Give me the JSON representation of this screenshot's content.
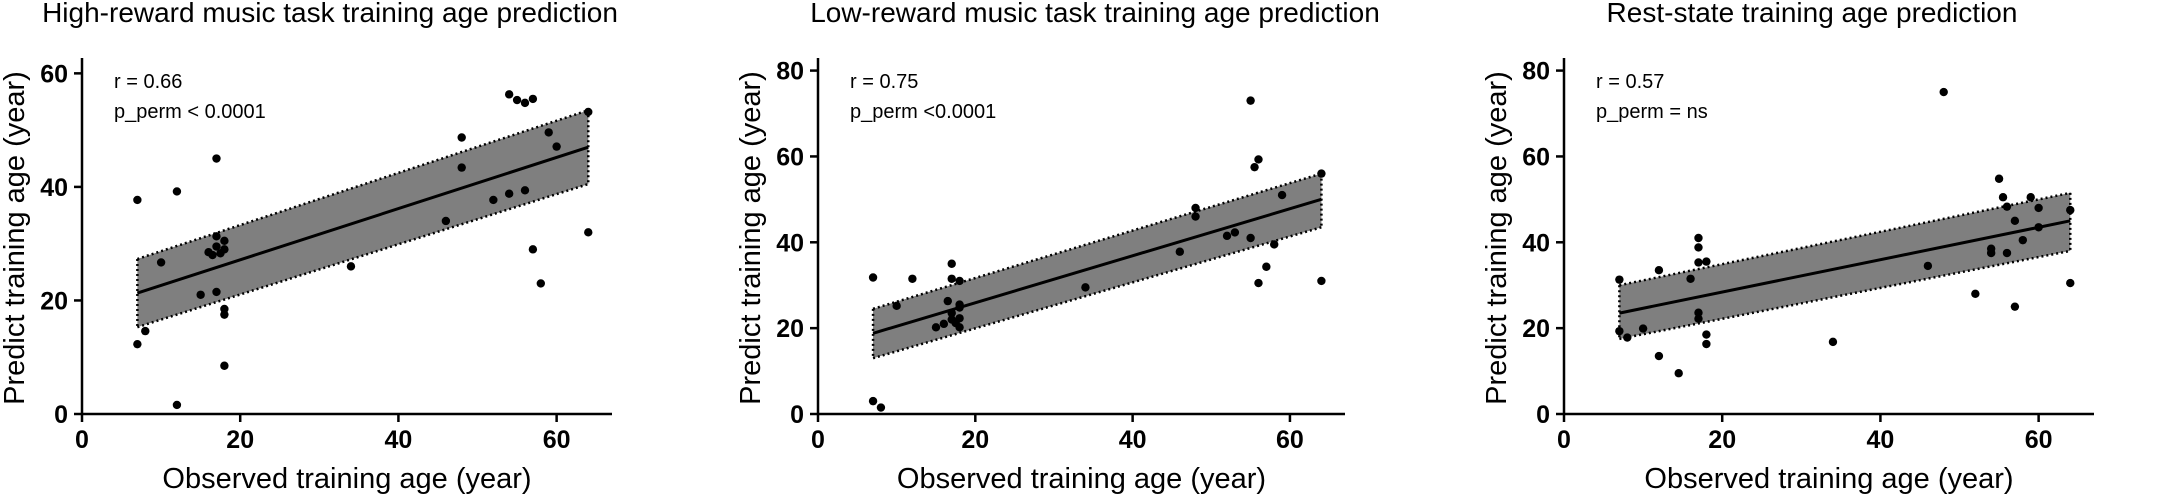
{
  "chart_data": [
    {
      "type": "scatter",
      "title": "High-reward music task training age prediction",
      "xlabel": "Observed training age (year)",
      "ylabel": "Predict training age (year)",
      "xlim": [
        0,
        67
      ],
      "ylim": [
        0,
        62
      ],
      "xticks": [
        0,
        20,
        40,
        60
      ],
      "yticks": [
        0,
        20,
        40,
        60
      ],
      "annotation": [
        "r = 0.66",
        "p_perm < 0.0001"
      ],
      "fit": {
        "x": [
          7,
          64
        ],
        "y": [
          21.3,
          47
        ]
      },
      "ci_upper": {
        "x": [
          7,
          64
        ],
        "y": [
          27.3,
          53.5
        ]
      },
      "ci_lower": {
        "x": [
          7,
          64
        ],
        "y": [
          15.3,
          40.5
        ]
      },
      "points": [
        {
          "x": 7,
          "y": 37.7
        },
        {
          "x": 7,
          "y": 12.3
        },
        {
          "x": 8,
          "y": 14.6
        },
        {
          "x": 10,
          "y": 26.7
        },
        {
          "x": 12,
          "y": 39.2
        },
        {
          "x": 12,
          "y": 1.6
        },
        {
          "x": 15,
          "y": 21
        },
        {
          "x": 16,
          "y": 28.5
        },
        {
          "x": 16.5,
          "y": 28
        },
        {
          "x": 17,
          "y": 31.3
        },
        {
          "x": 17,
          "y": 29.5
        },
        {
          "x": 17,
          "y": 45
        },
        {
          "x": 17,
          "y": 21.5
        },
        {
          "x": 17.5,
          "y": 28.3
        },
        {
          "x": 18,
          "y": 30.5
        },
        {
          "x": 18,
          "y": 29
        },
        {
          "x": 18,
          "y": 18.5
        },
        {
          "x": 18,
          "y": 17.5
        },
        {
          "x": 18,
          "y": 8.5
        },
        {
          "x": 34,
          "y": 26
        },
        {
          "x": 46,
          "y": 34
        },
        {
          "x": 48,
          "y": 48.7
        },
        {
          "x": 48,
          "y": 43.4
        },
        {
          "x": 52,
          "y": 37.7
        },
        {
          "x": 54,
          "y": 56.3
        },
        {
          "x": 54,
          "y": 38.8
        },
        {
          "x": 55,
          "y": 55.3
        },
        {
          "x": 56,
          "y": 54.8
        },
        {
          "x": 56,
          "y": 39.4
        },
        {
          "x": 57,
          "y": 55.5
        },
        {
          "x": 57,
          "y": 29
        },
        {
          "x": 58,
          "y": 23
        },
        {
          "x": 59,
          "y": 49.6
        },
        {
          "x": 60,
          "y": 47.1
        },
        {
          "x": 64,
          "y": 53.2
        },
        {
          "x": 64,
          "y": 32
        }
      ]
    },
    {
      "type": "scatter",
      "title": "Low-reward music task training age prediction",
      "xlabel": "Observed training age (year)",
      "ylabel": "Predict training age (year)",
      "xlim": [
        0,
        67
      ],
      "ylim": [
        0,
        82
      ],
      "xticks": [
        0,
        20,
        40,
        60
      ],
      "yticks": [
        0,
        20,
        40,
        60,
        80
      ],
      "annotation": [
        "r = 0.75",
        "p_perm <0.0001"
      ],
      "fit": {
        "x": [
          7,
          64
        ],
        "y": [
          18.8,
          50
        ]
      },
      "ci_upper": {
        "x": [
          7,
          64
        ],
        "y": [
          24.5,
          56
        ]
      },
      "ci_lower": {
        "x": [
          7,
          64
        ],
        "y": [
          13,
          43.5
        ]
      },
      "points": [
        {
          "x": 7,
          "y": 31.8
        },
        {
          "x": 7,
          "y": 3
        },
        {
          "x": 8,
          "y": 1.5
        },
        {
          "x": 10,
          "y": 25.2
        },
        {
          "x": 12,
          "y": 31.5
        },
        {
          "x": 15,
          "y": 20.2
        },
        {
          "x": 16,
          "y": 21
        },
        {
          "x": 16.5,
          "y": 26.3
        },
        {
          "x": 17,
          "y": 35
        },
        {
          "x": 17,
          "y": 31.5
        },
        {
          "x": 17,
          "y": 23.5
        },
        {
          "x": 17,
          "y": 22
        },
        {
          "x": 17.5,
          "y": 21.2
        },
        {
          "x": 18,
          "y": 31
        },
        {
          "x": 18,
          "y": 24.8
        },
        {
          "x": 18,
          "y": 22.3
        },
        {
          "x": 18,
          "y": 20.2
        },
        {
          "x": 18,
          "y": 25.5
        },
        {
          "x": 34,
          "y": 29.5
        },
        {
          "x": 46,
          "y": 37.8
        },
        {
          "x": 48,
          "y": 48
        },
        {
          "x": 48,
          "y": 46
        },
        {
          "x": 52,
          "y": 41.5
        },
        {
          "x": 53,
          "y": 42.3
        },
        {
          "x": 55,
          "y": 73
        },
        {
          "x": 55,
          "y": 41
        },
        {
          "x": 55.5,
          "y": 57.5
        },
        {
          "x": 56,
          "y": 59.3
        },
        {
          "x": 56,
          "y": 30.5
        },
        {
          "x": 57,
          "y": 34.3
        },
        {
          "x": 58,
          "y": 39.5
        },
        {
          "x": 59,
          "y": 51
        },
        {
          "x": 64,
          "y": 56
        },
        {
          "x": 64,
          "y": 31
        }
      ]
    },
    {
      "type": "scatter",
      "title": "Rest-state training age prediction",
      "xlabel": "Observed training age (year)",
      "ylabel": "Predict training age (year)",
      "xlim": [
        0,
        67
      ],
      "ylim": [
        0,
        82
      ],
      "xticks": [
        0,
        20,
        40,
        60
      ],
      "yticks": [
        0,
        20,
        40,
        60,
        80
      ],
      "annotation": [
        "r = 0.57",
        "p_perm = ns"
      ],
      "fit": {
        "x": [
          7,
          64
        ],
        "y": [
          23.5,
          45
        ]
      },
      "ci_upper": {
        "x": [
          7,
          64
        ],
        "y": [
          30,
          51.5
        ]
      },
      "ci_lower": {
        "x": [
          7,
          64
        ],
        "y": [
          17.5,
          38
        ]
      },
      "points": [
        {
          "x": 7,
          "y": 31.3
        },
        {
          "x": 7,
          "y": 19.3
        },
        {
          "x": 8,
          "y": 17.8
        },
        {
          "x": 10,
          "y": 19.9
        },
        {
          "x": 12,
          "y": 33.5
        },
        {
          "x": 12,
          "y": 13.5
        },
        {
          "x": 14.5,
          "y": 9.5
        },
        {
          "x": 16,
          "y": 31.5
        },
        {
          "x": 17,
          "y": 41
        },
        {
          "x": 17,
          "y": 38.8
        },
        {
          "x": 17,
          "y": 35.3
        },
        {
          "x": 17,
          "y": 23.6
        },
        {
          "x": 17,
          "y": 22.2
        },
        {
          "x": 18,
          "y": 35.5
        },
        {
          "x": 18,
          "y": 18.5
        },
        {
          "x": 18,
          "y": 16.3
        },
        {
          "x": 34,
          "y": 16.8
        },
        {
          "x": 46,
          "y": 34.5
        },
        {
          "x": 48,
          "y": 75
        },
        {
          "x": 52,
          "y": 28
        },
        {
          "x": 54,
          "y": 38.5
        },
        {
          "x": 54,
          "y": 37.5
        },
        {
          "x": 55,
          "y": 54.8
        },
        {
          "x": 55.5,
          "y": 50.5
        },
        {
          "x": 56,
          "y": 48.3
        },
        {
          "x": 56,
          "y": 37.5
        },
        {
          "x": 57,
          "y": 45
        },
        {
          "x": 57,
          "y": 25
        },
        {
          "x": 58,
          "y": 40.5
        },
        {
          "x": 59,
          "y": 50.5
        },
        {
          "x": 60,
          "y": 43.5
        },
        {
          "x": 60,
          "y": 48
        },
        {
          "x": 64,
          "y": 47.5
        },
        {
          "x": 64,
          "y": 30.5
        }
      ]
    }
  ]
}
